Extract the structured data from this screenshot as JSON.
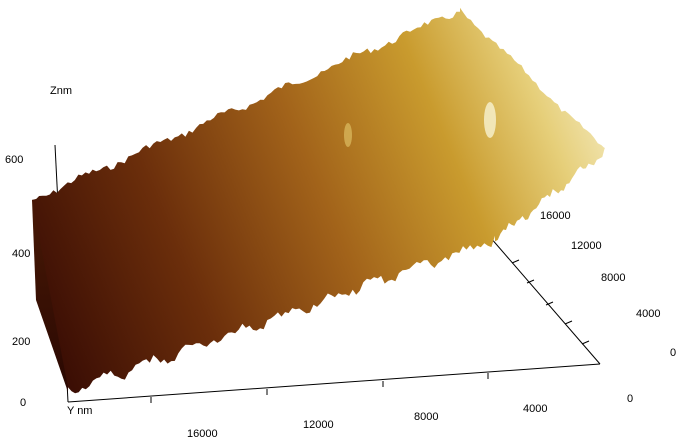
{
  "chart_data": {
    "type": "surface3d",
    "z_axis": {
      "label": "Znm",
      "ticks": [
        0,
        200,
        400,
        600
      ]
    },
    "y_axis": {
      "label": "Y nm",
      "ticks": [
        16000,
        12000,
        8000,
        4000,
        0
      ]
    },
    "x_axis": {
      "label": "",
      "ticks": [
        16000,
        12000,
        8000,
        4000,
        0
      ]
    },
    "colormap": [
      "#3a0d04",
      "#6b2e0b",
      "#a2631a",
      "#c99b2e",
      "#e6cf7a",
      "#f5ecc4"
    ],
    "surface": {
      "z_low_corner_nm": 500,
      "z_high_corner_nm": 830
    }
  },
  "labels": {
    "z_axis": "Znm",
    "y_axis": "Y nm"
  }
}
